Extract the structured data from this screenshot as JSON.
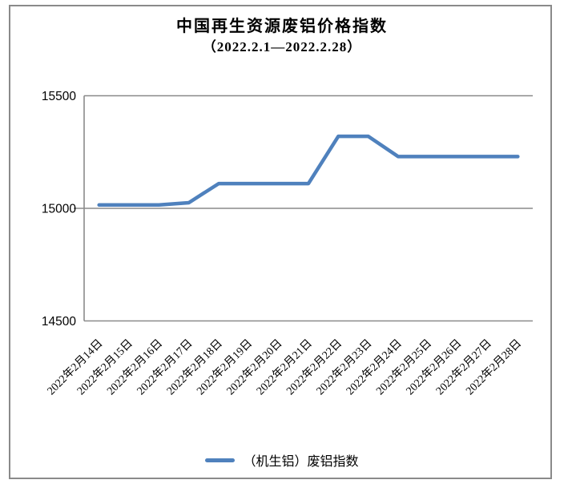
{
  "chart_data": {
    "type": "line",
    "title": "中国再生资源废铝价格指数",
    "subtitle": "（2022.2.1—2022.2.28）",
    "categories": [
      "2022年2月14日",
      "2022年2月15日",
      "2022年2月16日",
      "2022年2月17日",
      "2022年2月18日",
      "2022年2月19日",
      "2022年2月20日",
      "2022年2月21日",
      "2022年2月22日",
      "2022年2月23日",
      "2022年2月24日",
      "2022年2月25日",
      "2022年2月26日",
      "2022年2月27日",
      "2022年2月28日"
    ],
    "series": [
      {
        "name": "（机生铝）废铝指数",
        "values": [
          15015,
          15015,
          15015,
          15025,
          15110,
          15110,
          15110,
          15110,
          15320,
          15320,
          15230,
          15230,
          15230,
          15230,
          15230
        ]
      }
    ],
    "ylim": [
      14500,
      15500
    ],
    "yticks": [
      14500,
      15000,
      15500
    ],
    "ytick_labels": [
      "14500",
      "15000",
      "15500"
    ],
    "xlabel": "",
    "ylabel": "",
    "grid": "horizontal-major",
    "legend_position": "bottom",
    "x_label_rotation_deg": 45
  },
  "legend": {
    "label": "（机生铝）废铝指数"
  },
  "colors": {
    "line": "#4f81bd",
    "axis": "#8a8a8a",
    "text": "#000000",
    "background": "#ffffff"
  }
}
